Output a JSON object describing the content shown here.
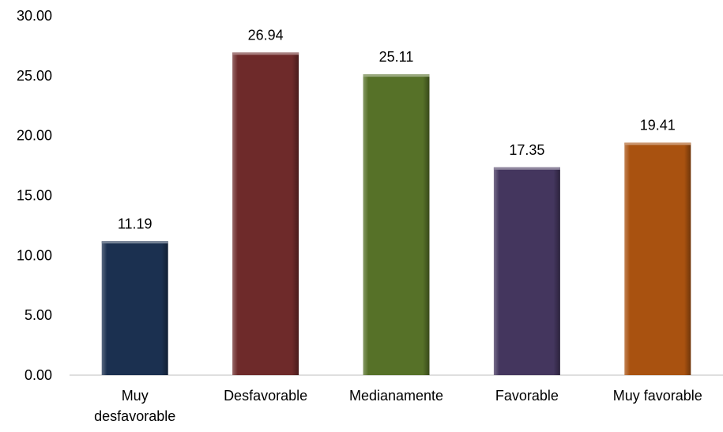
{
  "chart_data": {
    "type": "bar",
    "title": "",
    "xlabel": "",
    "ylabel": "",
    "categories": [
      [
        "Muy",
        "desfavorable"
      ],
      [
        "Desfavorable"
      ],
      [
        "Medianamente"
      ],
      [
        "Favorable"
      ],
      [
        "Muy favorable"
      ]
    ],
    "values": [
      11.19,
      26.94,
      25.11,
      17.35,
      19.41
    ],
    "value_labels": [
      "11.19",
      "26.94",
      "25.11",
      "17.35",
      "19.41"
    ],
    "ylim": [
      0,
      30
    ],
    "yticks": [
      "0.00",
      "5.00",
      "10.00",
      "15.00",
      "20.00",
      "25.00",
      "30.00"
    ],
    "grid": false,
    "legend": "none",
    "colors": [
      "#1b3050",
      "#6e2a2a",
      "#567128",
      "#44365e",
      "#a95210"
    ]
  }
}
